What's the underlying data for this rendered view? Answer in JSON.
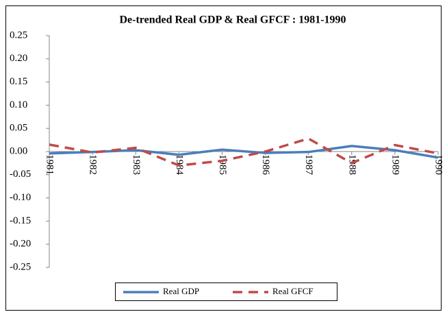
{
  "chart_data": {
    "type": "line",
    "title": "De-trended Real GDP & Real GFCF : 1981-1990",
    "categories": [
      "1981",
      "1982",
      "1983",
      "1984",
      "1985",
      "1986",
      "1987",
      "1988",
      "1989",
      "1990"
    ],
    "series": [
      {
        "name": "Real GDP",
        "color": "#4a7ebb",
        "dash": false,
        "values": [
          -0.004,
          -0.001,
          0.003,
          -0.007,
          0.004,
          -0.003,
          -0.001,
          0.012,
          0.003,
          -0.013
        ]
      },
      {
        "name": "Real GFCF",
        "color": "#be4b48",
        "dash": true,
        "values": [
          0.015,
          -0.002,
          0.008,
          -0.03,
          -0.02,
          0.0,
          0.028,
          -0.025,
          0.014,
          -0.004
        ]
      }
    ],
    "ylim": [
      -0.25,
      0.25
    ],
    "yticks": [
      {
        "value": 0.25,
        "label": "0.25"
      },
      {
        "value": 0.2,
        "label": "0.20"
      },
      {
        "value": 0.15,
        "label": "0.15"
      },
      {
        "value": 0.1,
        "label": "0.10"
      },
      {
        "value": 0.05,
        "label": "0.05"
      },
      {
        "value": 0,
        "label": "0.00"
      },
      {
        "value": -0.05,
        "label": "-0.05"
      },
      {
        "value": -0.1,
        "label": "-0.10"
      },
      {
        "value": -0.15,
        "label": "-0.15"
      },
      {
        "value": -0.2,
        "label": "-0.20"
      },
      {
        "value": -0.25,
        "label": "-0.25"
      }
    ],
    "legend": "bottom"
  }
}
